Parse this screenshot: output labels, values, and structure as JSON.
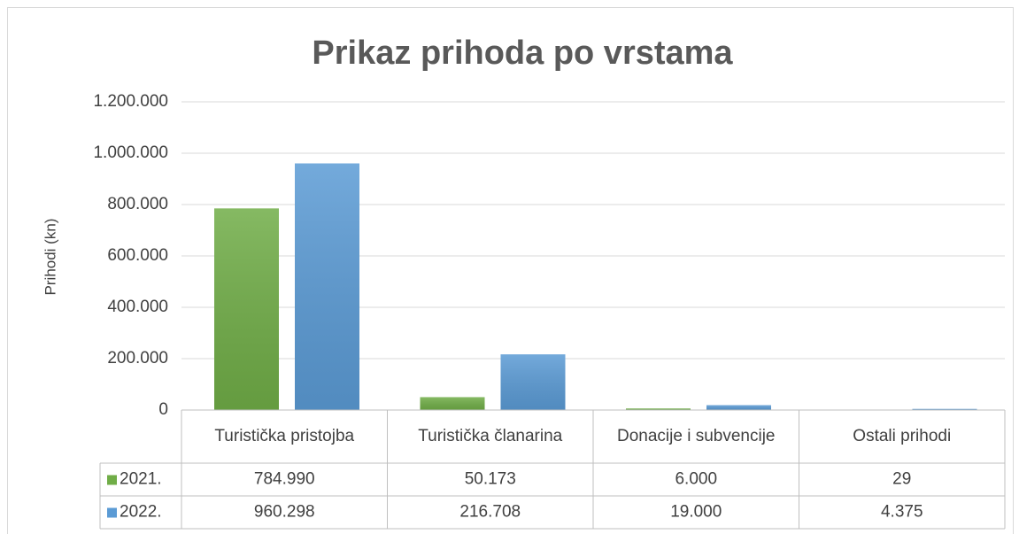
{
  "chart_data": {
    "type": "bar",
    "title": "Prikaz prihoda po vrstama",
    "y_label": "Prihodi (kn)",
    "categories": [
      "Turistička pristojba",
      "Turistička članarina",
      "Donacije i subvencije",
      "Ostali prihodi"
    ],
    "series": [
      {
        "name": "2021.",
        "color": "#70ad47",
        "values": [
          784990,
          50173,
          6000,
          29
        ],
        "value_labels": [
          "784.990",
          "50.173",
          "6.000",
          "29"
        ]
      },
      {
        "name": "2022.",
        "color": "#5b9bd5",
        "values": [
          960298,
          216708,
          19000,
          4375
        ],
        "value_labels": [
          "960.298",
          "216.708",
          "19.000",
          "4.375"
        ]
      }
    ],
    "ylim": [
      0,
      1200000
    ],
    "yticks": [
      0,
      {
        "value": 200000,
        "label": "200.000"
      },
      {
        "value": 400000,
        "label": "400.000"
      },
      {
        "value": 600000,
        "label": "600.000"
      },
      {
        "value": 800000,
        "label": "800.000"
      },
      {
        "value": 1000000,
        "label": "1.000.000"
      },
      {
        "value": 1200000,
        "label": "1.200.000"
      }
    ],
    "grid": true,
    "data_table": true
  }
}
